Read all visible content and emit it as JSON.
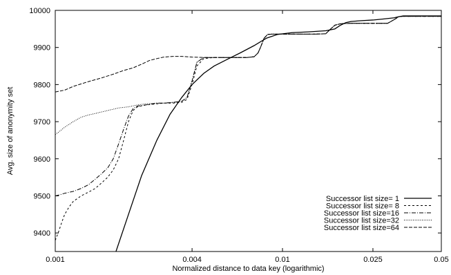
{
  "chart_data": {
    "type": "line",
    "title": "",
    "xlabel": "Normalized distance to data key (logarithmic)",
    "ylabel": "Avg. size of anonymity set",
    "xscale": "log",
    "xlim": [
      0.001,
      0.05
    ],
    "ylim": [
      9350,
      10000
    ],
    "xticks": [
      0.001,
      0.004,
      0.01,
      0.025,
      0.05
    ],
    "xtick_labels": [
      "0.001",
      "0.004",
      "0.01",
      "0.025",
      "0.05"
    ],
    "yticks": [
      9400,
      9500,
      9600,
      9700,
      9800,
      9900,
      10000
    ],
    "ytick_labels": [
      "9400",
      "9500",
      "9600",
      "9700",
      "9800",
      "9900",
      "10000"
    ],
    "grid": false,
    "legend_position": "bottom-right",
    "series": [
      {
        "name": "Successor list size= 1",
        "dash": "solid",
        "x": [
          0.00185,
          0.0021,
          0.0024,
          0.0028,
          0.0032,
          0.0036,
          0.004,
          0.0045,
          0.005,
          0.0058,
          0.0065,
          0.0075,
          0.0085,
          0.0095,
          0.011,
          0.013,
          0.0155,
          0.017,
          0.018,
          0.019,
          0.02,
          0.022,
          0.025,
          0.028,
          0.031,
          0.0325,
          0.034,
          0.036,
          0.04,
          0.05
        ],
        "y": [
          9350,
          9450,
          9555,
          9650,
          9720,
          9765,
          9800,
          9830,
          9850,
          9870,
          9885,
          9905,
          9925,
          9935,
          9940,
          9942,
          9945,
          9950,
          9960,
          9967,
          9970,
          9972,
          9974,
          9977,
          9980,
          9983,
          9985,
          9985,
          9985,
          9985
        ]
      },
      {
        "name": "Successor list size= 8",
        "dash": "short-dash",
        "x": [
          0.001,
          0.00103,
          0.00107,
          0.0011,
          0.00115,
          0.0012,
          0.0013,
          0.0014,
          0.0015,
          0.0016,
          0.0017,
          0.0018,
          0.0019,
          0.002,
          0.0021,
          0.0022,
          0.0023,
          0.0025,
          0.0028,
          0.003,
          0.0033,
          0.0036,
          0.0038,
          0.004,
          0.0042,
          0.0045,
          0.005,
          0.006,
          0.007,
          0.0075,
          0.0078,
          0.008,
          0.0083,
          0.0086,
          0.009,
          0.01,
          0.012,
          0.014,
          0.0155,
          0.0163,
          0.017,
          0.018,
          0.02,
          0.025,
          0.029,
          0.031,
          0.0325,
          0.034,
          0.05
        ],
        "y": [
          9380,
          9400,
          9430,
          9450,
          9470,
          9485,
          9500,
          9510,
          9520,
          9535,
          9550,
          9570,
          9600,
          9650,
          9700,
          9730,
          9740,
          9745,
          9748,
          9750,
          9750,
          9752,
          9760,
          9800,
          9850,
          9870,
          9873,
          9873,
          9873,
          9875,
          9885,
          9900,
          9925,
          9935,
          9936,
          9936,
          9936,
          9936,
          9937,
          9950,
          9960,
          9964,
          9965,
          9965,
          9965,
          9975,
          9983,
          9984,
          9984
        ]
      },
      {
        "name": "Successor list size=16",
        "dash": "dash-dot",
        "x": [
          0.001,
          0.00105,
          0.0011,
          0.0012,
          0.0013,
          0.0014,
          0.0015,
          0.0016,
          0.0017,
          0.0018,
          0.0019,
          0.002,
          0.0021,
          0.0022,
          0.0023,
          0.0025,
          0.0028,
          0.003,
          0.0033,
          0.0036,
          0.0038,
          0.004,
          0.0042,
          0.0045,
          0.005,
          0.006,
          0.007,
          0.0075,
          0.0078,
          0.008,
          0.0083,
          0.0086,
          0.009,
          0.01,
          0.012,
          0.014,
          0.0155,
          0.0163,
          0.017,
          0.018,
          0.02,
          0.025,
          0.029,
          0.031,
          0.0325,
          0.034,
          0.05
        ],
        "y": [
          9500,
          9503,
          9507,
          9512,
          9520,
          9530,
          9545,
          9560,
          9575,
          9600,
          9640,
          9680,
          9715,
          9735,
          9742,
          9745,
          9750,
          9750,
          9752,
          9755,
          9765,
          9810,
          9860,
          9873,
          9873,
          9873,
          9873,
          9875,
          9885,
          9900,
          9925,
          9935,
          9936,
          9936,
          9936,
          9936,
          9937,
          9950,
          9960,
          9964,
          9965,
          9965,
          9965,
          9975,
          9983,
          9984,
          9984
        ]
      },
      {
        "name": "Successor list size=32",
        "dash": "dotted",
        "x": [
          0.001,
          0.00105,
          0.0011,
          0.0012,
          0.0013,
          0.0014,
          0.0015,
          0.0017,
          0.0019,
          0.0021,
          0.0023,
          0.0025,
          0.0028,
          0.003,
          0.0033,
          0.0036,
          0.0038,
          0.004,
          0.0042,
          0.0045,
          0.005,
          0.006,
          0.007,
          0.0075,
          0.0078,
          0.008,
          0.0083,
          0.0086,
          0.009,
          0.01,
          0.012,
          0.014,
          0.0155,
          0.0163,
          0.017,
          0.018,
          0.02,
          0.025,
          0.029,
          0.031,
          0.0325,
          0.034,
          0.05
        ],
        "y": [
          9665,
          9675,
          9685,
          9700,
          9712,
          9718,
          9722,
          9730,
          9737,
          9740,
          9745,
          9748,
          9750,
          9750,
          9752,
          9755,
          9765,
          9810,
          9860,
          9873,
          9873,
          9873,
          9873,
          9875,
          9885,
          9900,
          9925,
          9935,
          9936,
          9936,
          9936,
          9936,
          9937,
          9950,
          9960,
          9964,
          9965,
          9965,
          9965,
          9975,
          9983,
          9984,
          9984
        ]
      },
      {
        "name": "Successor list size=64",
        "dash": "long-dash",
        "x": [
          0.001,
          0.0011,
          0.0012,
          0.0014,
          0.0016,
          0.0018,
          0.002,
          0.0022,
          0.0024,
          0.0026,
          0.0028,
          0.003,
          0.0033,
          0.0036,
          0.004,
          0.0045,
          0.005,
          0.006,
          0.007,
          0.0075,
          0.0078,
          0.008,
          0.0083,
          0.0086,
          0.009,
          0.01,
          0.012,
          0.014,
          0.0155,
          0.0163,
          0.017,
          0.018,
          0.02,
          0.025,
          0.029,
          0.031,
          0.0325,
          0.034,
          0.05
        ],
        "y": [
          9780,
          9785,
          9795,
          9808,
          9818,
          9828,
          9838,
          9845,
          9855,
          9865,
          9870,
          9874,
          9876,
          9876,
          9874,
          9873,
          9873,
          9873,
          9873,
          9875,
          9885,
          9900,
          9925,
          9935,
          9936,
          9936,
          9936,
          9936,
          9937,
          9950,
          9960,
          9964,
          9965,
          9965,
          9965,
          9975,
          9983,
          9984,
          9984
        ]
      }
    ]
  }
}
